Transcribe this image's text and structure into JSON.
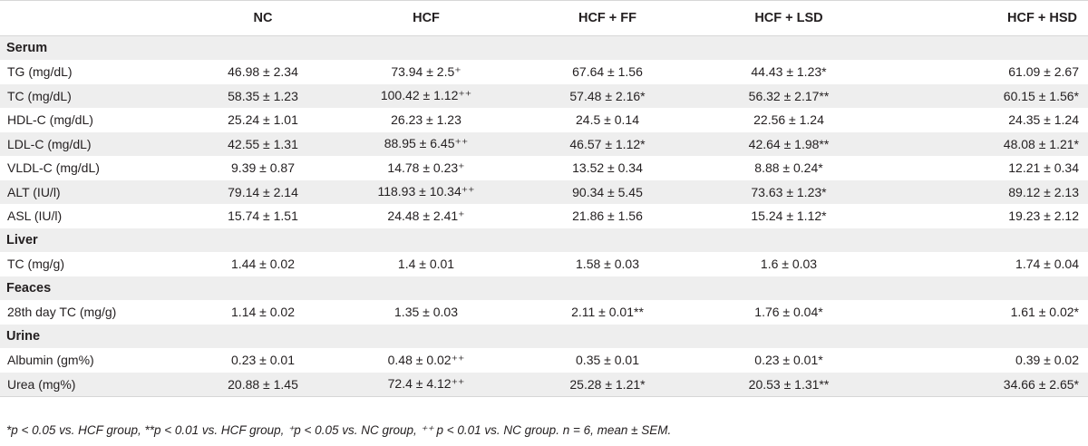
{
  "table": {
    "headers": [
      "",
      "NC",
      "HCF",
      "HCF + FF",
      "HCF + LSD",
      "HCF + HSD"
    ],
    "rows": [
      {
        "type": "section",
        "label": "Serum"
      },
      {
        "type": "data",
        "label": "TG (mg/dL)",
        "values": [
          "46.98 ± 2.34",
          "73.94 ± 2.5⁺",
          "67.64 ± 1.56",
          "44.43 ± 1.23*",
          "61.09 ± 2.67"
        ]
      },
      {
        "type": "data",
        "label": "TC (mg/dL)",
        "values": [
          "58.35 ± 1.23",
          "100.42 ± 1.12⁺⁺",
          "57.48 ± 2.16*",
          "56.32 ± 2.17**",
          "60.15 ± 1.56*"
        ]
      },
      {
        "type": "data",
        "label": "HDL-C (mg/dL)",
        "values": [
          "25.24 ± 1.01",
          "26.23 ± 1.23",
          "24.5 ± 0.14",
          "22.56 ± 1.24",
          "24.35 ± 1.24"
        ]
      },
      {
        "type": "data",
        "label": "LDL-C (mg/dL)",
        "values": [
          "42.55 ± 1.31",
          "88.95 ± 6.45⁺⁺",
          "46.57 ± 1.12*",
          "42.64 ± 1.98**",
          "48.08 ± 1.21*"
        ]
      },
      {
        "type": "data",
        "label": "VLDL-C (mg/dL)",
        "values": [
          "9.39 ± 0.87",
          "14.78 ± 0.23⁺",
          "13.52 ± 0.34",
          "8.88 ± 0.24*",
          "12.21 ± 0.34"
        ]
      },
      {
        "type": "data",
        "label": "ALT (IU/l)",
        "values": [
          "79.14 ± 2.14",
          "118.93 ± 10.34⁺⁺",
          "90.34 ± 5.45",
          "73.63 ± 1.23*",
          "89.12 ± 2.13"
        ]
      },
      {
        "type": "data",
        "label": "ASL (IU/l)",
        "values": [
          "15.74 ± 1.51",
          "24.48 ± 2.41⁺",
          "21.86 ± 1.56",
          "15.24 ± 1.12*",
          "19.23 ± 2.12"
        ]
      },
      {
        "type": "section",
        "label": "Liver"
      },
      {
        "type": "data",
        "label": "TC (mg/g)",
        "values": [
          "1.44 ± 0.02",
          "1.4 ± 0.01",
          "1.58 ± 0.03",
          "1.6 ± 0.03",
          "1.74 ± 0.04"
        ]
      },
      {
        "type": "section",
        "label": "Feaces"
      },
      {
        "type": "data",
        "label": "28th day TC (mg/g)",
        "values": [
          "1.14 ± 0.02",
          "1.35 ± 0.03",
          "2.11 ± 0.01**",
          "1.76 ± 0.04*",
          "1.61 ± 0.02*"
        ]
      },
      {
        "type": "section",
        "label": "Urine"
      },
      {
        "type": "data",
        "label": "Albumin (gm%)",
        "values": [
          "0.23 ± 0.01",
          "0.48 ± 0.02⁺⁺",
          "0.35 ± 0.01",
          "0.23 ± 0.01*",
          "0.39 ± 0.02"
        ]
      },
      {
        "type": "data",
        "label": "Urea (mg%)",
        "values": [
          "20.88 ± 1.45",
          "72.4 ± 4.12⁺⁺",
          "25.28 ± 1.21*",
          "20.53 ± 1.31**",
          "34.66 ± 2.65*"
        ]
      }
    ]
  },
  "footnote": "*p < 0.05 vs. HCF group, **p < 0.01 vs. HCF group, ⁺p < 0.05 vs. NC group, ⁺⁺ p < 0.01 vs. NC group. n = 6, mean ± SEM."
}
